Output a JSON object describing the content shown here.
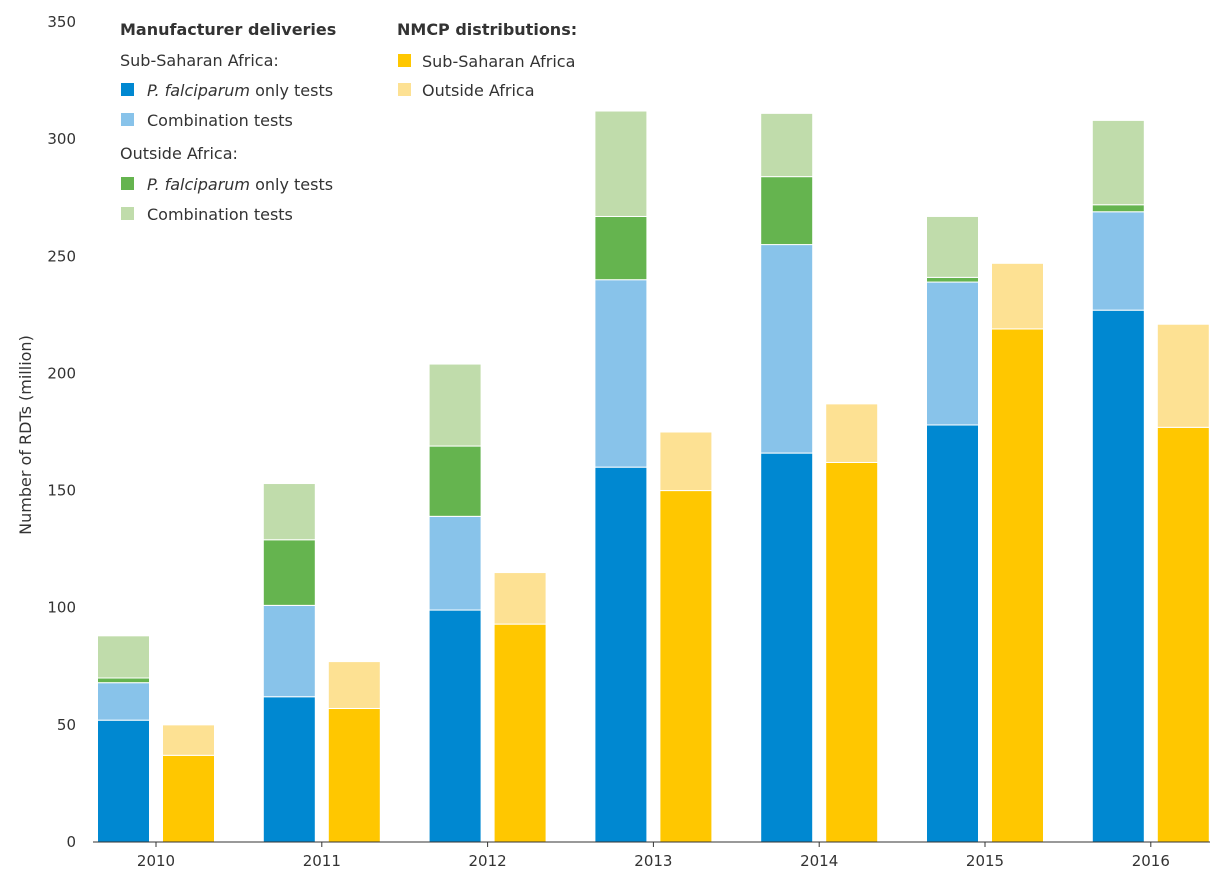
{
  "chart_data": {
    "type": "bar",
    "stacked": true,
    "ylabel": "Number of RDTs (million)",
    "xlabel": "",
    "ylim": [
      0,
      350
    ],
    "yticks": [
      0,
      50,
      100,
      150,
      200,
      250,
      300,
      350
    ],
    "grid": false,
    "legend_position": "top-left",
    "categories": [
      "2010",
      "2011",
      "2012",
      "2013",
      "2014",
      "2015",
      "2016"
    ],
    "groups": [
      {
        "name": "Manufacturer deliveries",
        "series": [
          {
            "name": "Sub-Saharan Africa: P. falciparum only tests",
            "color": "#0088d1",
            "values": [
              52,
              62,
              99,
              160,
              166,
              178,
              227
            ]
          },
          {
            "name": "Sub-Saharan Africa: Combination tests",
            "color": "#88c3ea",
            "values": [
              16,
              39,
              40,
              80,
              89,
              61,
              42
            ]
          },
          {
            "name": "Outside Africa: P. falciparum only tests",
            "color": "#65b44f",
            "values": [
              2,
              28,
              30,
              27,
              29,
              2,
              3
            ]
          },
          {
            "name": "Outside Africa: Combination tests",
            "color": "#c0dcab",
            "values": [
              18,
              24,
              35,
              45,
              27,
              26,
              36
            ]
          }
        ]
      },
      {
        "name": "NMCP distributions",
        "series": [
          {
            "name": "Sub-Saharan Africa",
            "color": "#ffc700",
            "values": [
              37,
              57,
              93,
              150,
              162,
              219,
              177
            ]
          },
          {
            "name": "Outside Africa",
            "color": "#fde193",
            "values": [
              13,
              20,
              22,
              25,
              25,
              28,
              44
            ]
          }
        ]
      }
    ],
    "legend": {
      "manufacturer_heading": "Manufacturer deliveries",
      "manufacturer_ssa_sub": "Sub-Saharan Africa:",
      "manufacturer_outside_sub": "Outside Africa:",
      "nmcp_heading": "NMCP distributions:",
      "pf_italic": "P. falciparum",
      "pf_rest": " only tests",
      "combination": "Combination tests",
      "nmcp_ssa": "Sub-Saharan Africa",
      "nmcp_outside": "Outside Africa"
    }
  }
}
